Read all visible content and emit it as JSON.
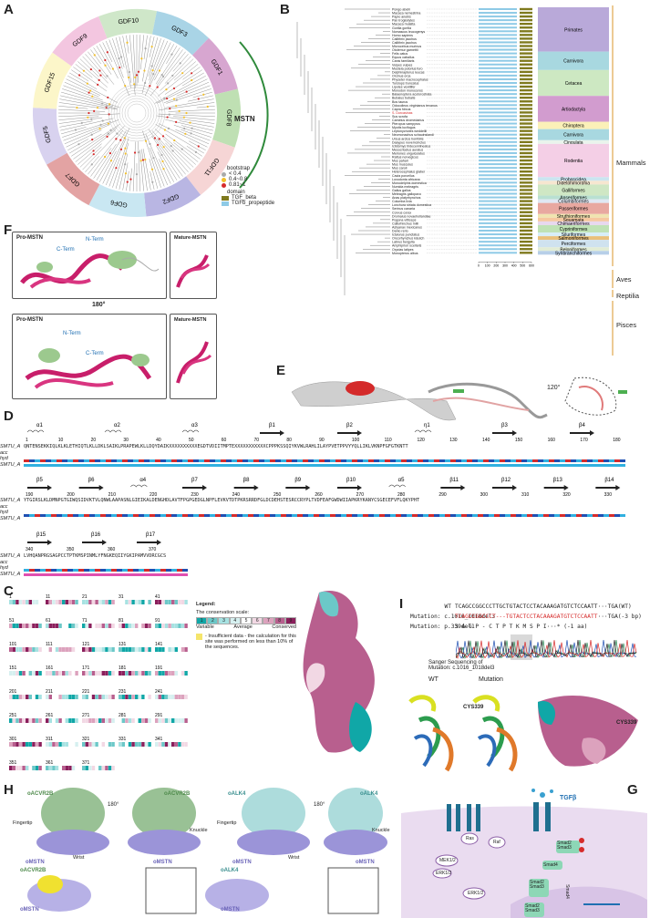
{
  "panels": {
    "A": {
      "letter": "A",
      "families": [
        "GDF10",
        "GDF3",
        "GDF1",
        "GDF8",
        "GDF11",
        "GDF2",
        "GDF6",
        "GDF7",
        "GDF5",
        "GDF15",
        "GDF9"
      ],
      "family_colors": [
        "#cfe7c9",
        "#a9d4e6",
        "#d7a6d0",
        "#bfe0b3",
        "#f6d5d5",
        "#b9b6e3",
        "#c9e7f2",
        "#e3a3a3",
        "#d8d2ef",
        "#fcf6c9",
        "#f3c6e0"
      ],
      "highlight": "MSTN",
      "legend": {
        "bootstrap_title": "bootstrap",
        "bootstrap_items": [
          "< 0.4",
          "0.4~0.8",
          "0.81~1"
        ],
        "bootstrap_colors": [
          "#aaaaaa",
          "#f2c02b",
          "#d62b2b"
        ],
        "domain_title": "domain",
        "domain_items": [
          "TGF_beta",
          "TGFb_propeptide"
        ],
        "domain_colors": [
          "#7f7a1e",
          "#8ecae6"
        ]
      }
    },
    "B": {
      "letter": "B",
      "species": [
        "Pongo abelii",
        "Macaca nemestrina",
        "Papio anubis",
        "Pan troglodytes",
        "Macaca mulatta",
        "Gorilla gorilla",
        "Nomascus leucogenys",
        "Homo sapiens",
        "Callithrix jacchus",
        "Callithrix jacchus",
        "Microcebus murinus",
        "Otolemur garnettii",
        "Felis catus",
        "Equus caballus",
        "Canis familiaris",
        "Vulpes vulpes",
        "Mustela putorius furo",
        "Delphinapterus leucas",
        "Orcinus orca",
        "Physeter macrocephalus",
        "Tursiops truncatus",
        "Lipotes vexillifer",
        "Monodon monoceros",
        "Balaenoptera acutorostrata",
        "Bubalus bubalis",
        "Bos taurus",
        "Odocoileus virginianus texanus",
        "Capra hircus",
        "S. Dorcasinas",
        "Sus scrofa",
        "Camelus dromedarius",
        "Pteropus vampyrus",
        "Myotis lucifugus",
        "Leptonychotes weddellii",
        "Neomonachus schauinslandi",
        "Ursus arctos horribilis",
        "Dasypus novemcinctus",
        "Ictidomys tridecemlineatus",
        "Mesocricetus auratus",
        "Meriones unguiculatus",
        "Rattus norvegicus",
        "Mus pahari",
        "Mus musculus",
        "Mus caroli",
        "Heterocephalus glaber",
        "Cavia porcellus",
        "Loxodonta africana",
        "Monodelphis domestica",
        "Numida meleagris",
        "Gallus gallus",
        "Meleagris gallopavo",
        "Anas platyrhynchos",
        "Columba livia",
        "Lonchura striata domestica",
        "Serinus canaria",
        "Corvus corax",
        "Dromaius novaehollandiae",
        "Pogona vitticeps",
        "Callorhinchus milii",
        "Astyanax mexicanus",
        "Danio rerio",
        "Ictalurus punctatus",
        "Oncorhynchus kisutch",
        "Labrus bergylta",
        "Amphiprion ocellaris",
        "Oryzias latipes",
        "Monopterus albus"
      ],
      "groups": [
        {
          "name": "Primates",
          "color": "#b9a9d9"
        },
        {
          "name": "Carnivora",
          "color": "#a8d8e0"
        },
        {
          "name": "Cetacea",
          "color": "#cde8c2"
        },
        {
          "name": "Artiodactyla",
          "color": "#d29ccf"
        },
        {
          "name": "Chiroptera",
          "color": "#fbf0b8"
        },
        {
          "name": "Carnivora",
          "color": "#a8d8e0"
        },
        {
          "name": "Cingulata",
          "color": "#e9f4ec"
        },
        {
          "name": "Rodentia",
          "color": "#f4cfe6"
        },
        {
          "name": "Proboscidea",
          "color": "#cbe5f0"
        },
        {
          "name": "Didelphimorphia",
          "color": "#f6e6d0"
        },
        {
          "name": "Galliformes",
          "color": "#cfe7c4"
        },
        {
          "name": "Anseriformes",
          "color": "#b9e0d2"
        },
        {
          "name": "Columbiformes",
          "color": "#dfe8f3"
        },
        {
          "name": "Passeriformes",
          "color": "#e8a8a0"
        },
        {
          "name": "Struthioniformes",
          "color": "#f0e4b0"
        },
        {
          "name": "Squamata",
          "color": "#f6c8a0"
        },
        {
          "name": "Chimaeriformes",
          "color": "#e8d8ee"
        },
        {
          "name": "Cypriniformes",
          "color": "#bfe2b5"
        },
        {
          "name": "Siluriformes",
          "color": "#d7eef7"
        },
        {
          "name": "Salmoniformes",
          "color": "#e9c07a"
        },
        {
          "name": "Perciformes",
          "color": "#cfe2ef"
        },
        {
          "name": "Beloniformes",
          "color": "#e2ecd6"
        },
        {
          "name": "Synbranchiformes",
          "color": "#b7cfe8"
        }
      ],
      "classes": [
        "Mammals",
        "Aves",
        "Reptilia",
        "Pisces"
      ],
      "axis_ticks": [
        "0",
        "100",
        "200",
        "300",
        "400",
        "500",
        "600"
      ]
    },
    "C": {
      "letter": "C",
      "legend_title": "Legend:",
      "scale_title": "The conservation scale:",
      "scale_numbers": [
        "1",
        "2",
        "3",
        "4",
        "5",
        "6",
        "7",
        "8",
        "9"
      ],
      "scale_colors": [
        "#10a7a7",
        "#6cc8c8",
        "#a7e2e2",
        "#d6f0f0",
        "#ffffff",
        "#f2d8e4",
        "#dca2bd",
        "#b85f8e",
        "#8b1f5c"
      ],
      "scale_labels": [
        "Variable",
        "Average",
        "Conserved"
      ],
      "insufficient": "- Insufficient data - the calculation for this site was performed on less than 10% of the sequences.",
      "row_numbers": [
        "1",
        "11",
        "21",
        "31",
        "41",
        "51",
        "61",
        "71",
        "81",
        "91",
        "101",
        "111",
        "121",
        "131",
        "141",
        "151",
        "161",
        "171",
        "181",
        "191",
        "201",
        "211",
        "221",
        "231",
        "241",
        "251",
        "261",
        "271",
        "281",
        "291",
        "301",
        "311",
        "321",
        "331",
        "341",
        "351",
        "361",
        "371"
      ]
    },
    "D": {
      "letter": "D",
      "labels": [
        "SMTU_A",
        "acc",
        "hyd",
        "SMTU_A"
      ],
      "row1_elements": [
        "α1",
        "α2",
        "α3",
        "β1",
        "β2",
        "η1",
        "β3",
        "β4"
      ],
      "row1_ticks": [
        "1",
        "10",
        "20",
        "30",
        "40",
        "50",
        "60",
        "70",
        "80",
        "90",
        "100",
        "110",
        "120",
        "130",
        "140",
        "150",
        "160",
        "170",
        "180"
      ],
      "row1_seq": "QNTENSEKKIQLKLKLETHIQTLKLLDKLSAIKLPRAPEWLKLLDQYDAIKXXXXXXXXXXEGDTVDIITMPTEXXXXXXXXXXXCPPPKSSQIYKVWLRAHLILAYPVETPPVYYQLLIKLVKNPFGFGTKNTT",
      "row2_elements": [
        "β5",
        "β6",
        "α4",
        "β7",
        "β8",
        "β9",
        "β10",
        "α5",
        "β11",
        "β12",
        "β13",
        "β14"
      ],
      "row2_ticks": [
        "190",
        "200",
        "210",
        "220",
        "230",
        "240",
        "250",
        "260",
        "270",
        "280",
        "290",
        "300",
        "310",
        "320",
        "330"
      ],
      "row2_seq": "YTGIRSLKLDMNPGTGIWQSIDVKTVLQNWLAAPASNLGIEIKALDENGHDLAVTFPGPGEDGLNPFLEVKVTDTPKRSRRDFGLDCDEHSTESRCCRYPLTVDFEAFGWDWIIAPKRYKANYCSGECEFVFLQKYPHT",
      "row3_elements": [
        "β15",
        "β16",
        "β17"
      ],
      "row3_ticks": [
        "340",
        "350",
        "360",
        "370"
      ],
      "row3_seq": "LVHQANPRGSAGPCCTPTKMSPINMLYFNGKEQIIYGKIPAMVVDRCGCS"
    },
    "E": {
      "letter": "E",
      "rotation": "120°"
    },
    "F": {
      "letter": "F",
      "pro_label": "Pro-MSTN",
      "mature_label": "Mature-MSTN",
      "nterm": "N-Term",
      "cterm": "C-Term",
      "rotation": "180°"
    },
    "G": {
      "letter": "G",
      "tgfb": "TGFβ",
      "ras": "Ras",
      "raf": "Raf",
      "mek": "MEK1/2",
      "erk": "ERK1/2",
      "erk2": "ERK1/2",
      "smad23": "Smad2\nSmad3",
      "smad2": "Smad2",
      "smad3": "Smad3",
      "smad4": "Smad4",
      "smad4b": "Smad4"
    },
    "H": {
      "letter": "H",
      "acvr": "oACVR2B",
      "alk": "oALK4",
      "mstn": "oMSTN",
      "fingertip": "Fingertip",
      "knuckle": "Knuckle",
      "wrist": "Wrist",
      "rotation": "180°"
    },
    "I": {
      "letter": "I",
      "wt_label": "WT",
      "wt_seq": "TCAGCCGGCCCTTGCTGTACTCCTACAAAGATGTCTCCAATT",
      "wt_end": "···TGA(WT)",
      "mut_label": "Mutation: c.1016_1018del3",
      "mut_seq": "TCAGCCGGCCCT---TGTACTCCTACAAAGATGTCTCCAATT",
      "mut_end": "···TGA(-3 bp)",
      "prot_label": "Mutation: p.339del1",
      "prot_seq": "S  A  G  P  -  C  T  P  T  K  M  S  P  I",
      "prot_end": "···* (-1 aa)",
      "sanger_title": "Sanger Sequencing of",
      "sanger_sub": "Mutation: c.1016_1018del3",
      "wt_struct": "WT",
      "mut_struct": "Mutation",
      "cys": "CYS339",
      "cys2": "CYS339"
    }
  }
}
